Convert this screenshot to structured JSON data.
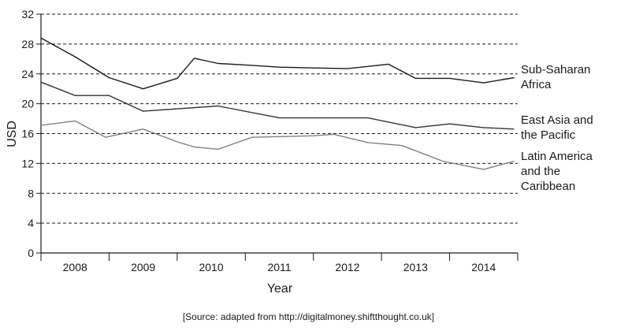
{
  "chart_data": {
    "type": "line",
    "ylabel": "USD",
    "xlabel": "Year",
    "ylim": [
      0,
      32
    ],
    "yticks": [
      0,
      4,
      8,
      12,
      16,
      20,
      24,
      28,
      32
    ],
    "categories": [
      "2008",
      "2009",
      "2010",
      "2011",
      "2012",
      "2013",
      "2014"
    ],
    "xlim": [
      0,
      7
    ],
    "grid": "horizontal dashed",
    "series": [
      {
        "name_lines": [
          "Sub-Saharan",
          "Africa"
        ],
        "color": "#1a1a1a",
        "x": [
          0,
          0.5,
          1,
          1.5,
          2,
          2.25,
          2.6,
          3,
          3.5,
          4,
          4.5,
          4.8,
          5.1,
          5.5,
          6,
          6.5,
          6.95
        ],
        "values": [
          28.8,
          26.3,
          23.5,
          22.0,
          23.4,
          26.1,
          25.4,
          25.2,
          24.9,
          24.8,
          24.7,
          25.0,
          25.3,
          23.4,
          23.4,
          22.8,
          23.5
        ]
      },
      {
        "name_lines": [
          "East Asia and",
          "the Pacific"
        ],
        "color": "#333333",
        "x": [
          0,
          0.5,
          1,
          1.5,
          2.6,
          3.5,
          4,
          4.5,
          4.8,
          5.5,
          6,
          6.5,
          6.95
        ],
        "values": [
          22.9,
          21.1,
          21.1,
          19.0,
          19.7,
          18.1,
          18.1,
          18.1,
          18.1,
          16.8,
          17.3,
          16.8,
          16.6
        ]
      },
      {
        "name_lines": [
          "Latin America",
          "and the",
          "Caribbean"
        ],
        "color": "#808080",
        "x": [
          0,
          0.5,
          0.95,
          1.5,
          2,
          2.25,
          2.6,
          3.1,
          4,
          4.3,
          4.8,
          5.3,
          5.9,
          6.5,
          6.95
        ],
        "values": [
          17.1,
          17.7,
          15.5,
          16.6,
          14.9,
          14.2,
          13.9,
          15.5,
          15.7,
          15.9,
          14.8,
          14.4,
          12.3,
          11.2,
          12.3
        ]
      }
    ]
  },
  "source_text": "[Source: adapted from http://digitalmoney.shiftthought.co.uk]"
}
